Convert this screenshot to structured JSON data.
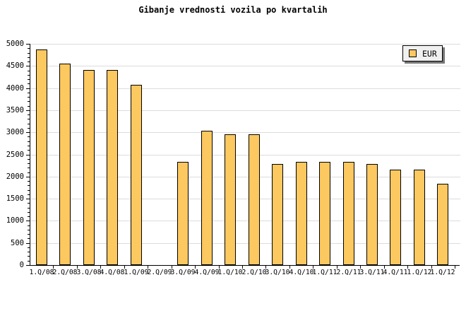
{
  "title": "Gibanje vrednosti vozila po kvartalih",
  "legend": {
    "label": "EUR",
    "position": "top-right"
  },
  "colors": {
    "bar_fill": "#FCC860",
    "bar_border": "#000000",
    "gridline": "#DCDCDC",
    "axis": "#000000",
    "text": "#000000",
    "legend_bg": "#F0F0F0",
    "legend_shadow": "#777777",
    "background": "#FFFFFF"
  },
  "chart_data": {
    "type": "bar",
    "title": "Gibanje vrednosti vozila po kvartalih",
    "categories": [
      "1.Q/08",
      "2.Q/08",
      "3.Q/08",
      "4.Q/08",
      "1.Q/09",
      "2.Q/09",
      "3.Q/09",
      "4.Q/09",
      "1.Q/10",
      "2.Q/10",
      "3.Q/10",
      "4.Q/10",
      "1.Q/11",
      "2.Q/11",
      "3.Q/11",
      "4.Q/11",
      "1.Q/12",
      "1.Q/12"
    ],
    "series": [
      {
        "name": "EUR",
        "values": [
          4880,
          4550,
          4410,
          4410,
          4080,
          null,
          2340,
          3030,
          2960,
          2960,
          2280,
          2340,
          2340,
          2340,
          2280,
          2150,
          2150,
          1830
        ]
      }
    ],
    "xlabel": "",
    "ylabel": "",
    "ylim": [
      0,
      5000
    ],
    "ytick_step": 500,
    "ytick_minor_step": 100,
    "yticks": [
      0,
      500,
      1000,
      1500,
      2000,
      2500,
      3000,
      3500,
      4000,
      4500,
      5000
    ],
    "grid": true,
    "legend_position": "top-right",
    "note": "no bar rendered for 2.Q/09 (missing value)"
  }
}
